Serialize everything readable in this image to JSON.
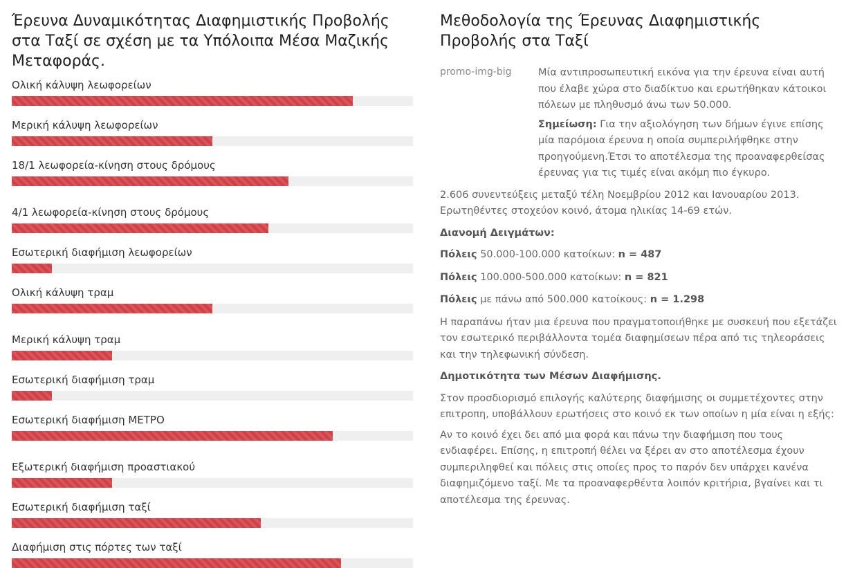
{
  "left": {
    "title": "Έρευνα Δυναμικότητας Διαφημιστικής Προβολής στα Ταξί σε σχέση με τα Υπόλοιπα Μέσα Μαζικής Μεταφοράς.",
    "bars": [
      {
        "label": "Ολική κάλυψη λεωφορείων",
        "value": 85
      },
      {
        "label": "Μερική κάλυψη λεωφορείων",
        "value": 50
      },
      {
        "label": "18/1 λεωφορεία-κίνηση στους δρόμους",
        "value": 69
      },
      {
        "label": "4/1 λεωφορεία-κίνηση στους δρόμους",
        "value": 64
      },
      {
        "label": "Εσωτερική διαφήμιση λεωφορείων",
        "value": 10
      },
      {
        "label": "Ολική κάλυψη τραμ",
        "value": 50
      },
      {
        "label": "Μερική κάλυψη τραμ",
        "value": 25
      },
      {
        "label": "Εσωτερική διαφήμιση τραμ",
        "value": 10
      },
      {
        "label": "Εσωτερική διαφήμιση ΜΕΤΡΟ",
        "value": 80
      },
      {
        "label": "Εξωτερική διαφήμιση προαστιακού",
        "value": 25
      },
      {
        "label": "Εσωτερική διαφήμιση ταξί",
        "value": 62
      },
      {
        "label": "Διαφήμιση στις πόρτες των ταξί",
        "value": 82
      }
    ]
  },
  "right": {
    "title": "Μεθοδολογία της Έρευνας Διαφημιστικής Προβολής στα Ταξί",
    "promo_img_alt": "promo-img-big",
    "intro": "Μία αντιπροσωπευτική εικόνα για την έρευνα είναι αυτή που έλαβε χώρα στο διαδίκτυο και ερωτήθηκαν κάτοικοι πόλεων με πληθυσμό άνω των 50.000.",
    "note_label": "Σημείωση:",
    "note_text": " Για την αξιολόγηση των δήμων έγινε επίσης μία παρόμοια έρευνα η οποία συμπεριλήφθηκε στην προηγούμενη.Έτσι το αποτέλεσμα της προαναφερθείσας έρευνας για τις τιμές είναι ακόμη πιο έγκυρο.",
    "interviews": "2.606 συνεντεύξεις μεταξύ τέλη Νοεμβρίου 2012 και Ιανουαρίου 2013. Ερωτηθέντες στοχεύον κοινό, άτομα ηλικίας 14-69 ετών.",
    "distribution_heading": "Διανομή Δειγμάτων:",
    "cities": [
      {
        "label": "Πόλεις",
        "range": " 50.000-100.000 κατοίκων:  ",
        "n": "n = 487"
      },
      {
        "label": "Πόλεις",
        "range": " 100.000-500.000  κατοίκων:  ",
        "n": "n = 821"
      },
      {
        "label": "Πόλεις",
        "range": " με πάνω από 500.000 κατοίκους:  ",
        "n": "n = 1.298"
      }
    ],
    "device_text": "Η παραπάνω ήταν μια έρευνα που πραγματοποιήθηκε με συσκευή που εξετάζει τον εσωτερικό περιβάλλοντα τομέα διαφημίσεων πέρα από τις τηλεοράσεις και την τηλεφωνική σύνδεση.",
    "popularity_heading": "Δημοτικότητα των Μέσων Διαφήμισης.",
    "popularity_text": "Στον προσδιορισμό επιλογής καλύτερης διαφήμισης οι συμμετέχοντες στην επιτροπη, υποβάλλουν ερωτήσεις στο κοινό εκ των οποίων η μία είναι η εξής:",
    "conclusion": "Αν το κοινό έχει δει από μια φορά και πάνω την διαφήμιση που τους ενδιαφέρει. Επίσης, η επιτροπή θέλει να ξέρει αν στο αποτέλεσμα έχουν συμπεριληφθεί και πόλεις στις οποίες προς το παρόν δεν υπάρχει κανένα διαφημιζόμενο ταξί. Με τα προαναφερθέντα λοιπόν κριτήρια, βγαίνει και τι αποτέλεσμα της έρευνας."
  }
}
